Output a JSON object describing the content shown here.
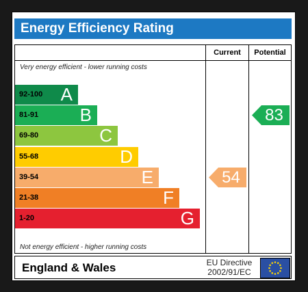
{
  "title": "Energy Efficiency Rating",
  "columns": {
    "current": "Current",
    "potential": "Potential"
  },
  "top_note": "Very energy efficient - lower running costs",
  "bottom_note": "Not energy efficient - higher running costs",
  "bands": [
    {
      "range": "92-100",
      "letter": "A",
      "color": "#0f8a4a"
    },
    {
      "range": "81-91",
      "letter": "B",
      "color": "#1bae55"
    },
    {
      "range": "69-80",
      "letter": "C",
      "color": "#8dc63f"
    },
    {
      "range": "55-68",
      "letter": "D",
      "color": "#ffcc00"
    },
    {
      "range": "39-54",
      "letter": "E",
      "color": "#f7ac6b"
    },
    {
      "range": "21-38",
      "letter": "F",
      "color": "#f07f25"
    },
    {
      "range": "1-20",
      "letter": "G",
      "color": "#e5202f"
    }
  ],
  "current": {
    "value": "54",
    "band": "E",
    "color": "#f7ac6b"
  },
  "potential": {
    "value": "83",
    "band": "B",
    "color": "#1bae55"
  },
  "footer": {
    "region": "England & Wales",
    "directive_line1": "EU Directive",
    "directive_line2": "2002/91/EC",
    "flag_icon": "eu-flag-icon"
  }
}
